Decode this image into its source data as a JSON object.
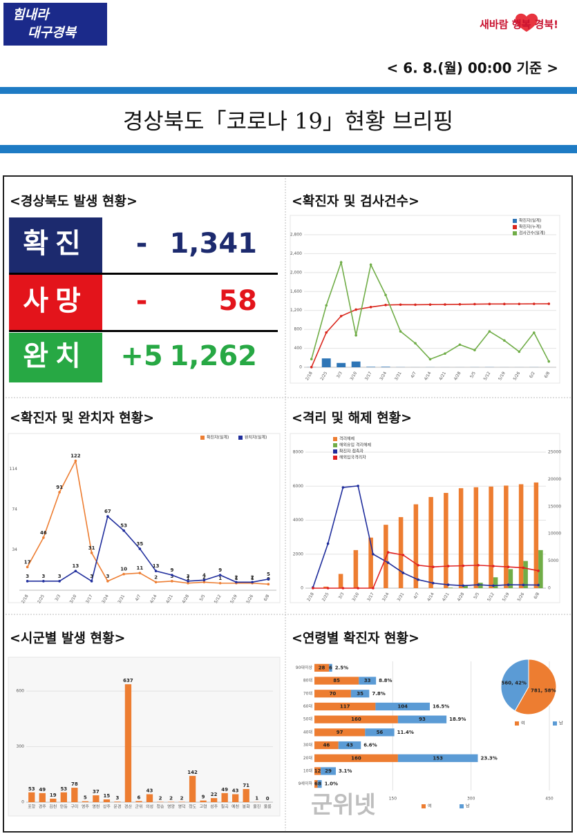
{
  "header": {
    "logo": [
      "힘내라",
      "대구경북"
    ],
    "slogan": "새바람 행복 경북!",
    "date": "< 6. 8.(월) 00:00 기준 >",
    "title": "경상북도「코로나 19」현황 브리핑"
  },
  "status": {
    "title": "<경상북도 발생 현황>",
    "rows": [
      {
        "label": "확진",
        "change": "-",
        "total": "1,341"
      },
      {
        "label": "사망",
        "change": "-",
        "total": "58"
      },
      {
        "label": "완치",
        "change": "+5",
        "total": "1,262"
      }
    ]
  },
  "watermark": "군위넷",
  "chart_data": [
    {
      "type": "line",
      "title": "<확진자 및 검사건수>",
      "categories": [
        "2/18",
        "2/25",
        "3/3",
        "3/10",
        "3/17",
        "3/24",
        "3/31",
        "4/7",
        "4/14",
        "4/21",
        "4/28",
        "5/5",
        "5/12",
        "5/19",
        "5/26",
        "6/2",
        "6/8"
      ],
      "ylim": [
        0,
        2800
      ],
      "yticks": [
        0,
        400,
        800,
        {
          "value": 1200,
          "label": "1,200"
        },
        {
          "value": 1600,
          "label": "1,600"
        },
        {
          "value": 2000,
          "label": "2,000"
        },
        {
          "value": 2400,
          "label": "2,400"
        },
        {
          "value": 2800,
          "label": "2,800"
        }
      ],
      "grid": true,
      "series": [
        {
          "name": "확진자(일계)",
          "type": "bar",
          "color": "#2e75b6",
          "values": [
            3,
            187,
            91,
            122,
            10,
            11,
            3,
            1,
            2,
            1,
            1,
            2,
            3,
            1,
            1,
            2,
            0
          ]
        },
        {
          "name": "확진자(누계)",
          "type": "line",
          "color": "#d9261c",
          "values": [
            3,
            734,
            1081,
            1218,
            1272,
            1315,
            1323,
            1321,
            1324,
            1326,
            1330,
            1334,
            1337,
            1337,
            1338,
            1340,
            1341
          ]
        },
        {
          "name": "검사건수(일계)",
          "type": "line",
          "color": "#70ad47",
          "values": [
            172,
            1307,
            2216,
            675,
            2167,
            1526,
            758,
            506,
            170,
            289,
            477,
            362,
            758,
            566,
            329,
            731,
            123
          ]
        }
      ]
    },
    {
      "type": "line",
      "title": "<확진자 및 완치자 현황>",
      "categories": [
        "2/18",
        "2/25",
        "3/3",
        "3/10",
        "3/17",
        "3/24",
        "3/31",
        "4/7",
        "4/14",
        "4/21",
        "4/28",
        "5/5",
        "5/12",
        "5/19",
        "5/26",
        "6/8"
      ],
      "ylim": [
        -6,
        134
      ],
      "yticks": [
        34,
        74,
        114
      ],
      "grid": false,
      "data_labels": true,
      "series": [
        {
          "name": "확진자(일계)",
          "type": "line",
          "color": "#ed7d31",
          "values": [
            17,
            46,
            91,
            122,
            31,
            3,
            10,
            11,
            2,
            3,
            1,
            2,
            1,
            1,
            1,
            0
          ]
        },
        {
          "name": "완치자(일계)",
          "type": "line",
          "color": "#1f2d9c",
          "values": [
            3,
            3,
            3,
            13,
            3,
            67,
            53,
            35,
            13,
            9,
            3,
            4,
            9,
            2,
            2,
            5
          ]
        }
      ]
    },
    {
      "type": "line",
      "title": "<격리 및 해제 현황>",
      "categories": [
        "2/18",
        "2/25",
        "3/3",
        "3/10",
        "3/17",
        "3/24",
        "3/31",
        "4/7",
        "4/14",
        "4/21",
        "4/28",
        "5/5",
        "5/12",
        "5/19",
        "5/26",
        "6/8"
      ],
      "ylim": [
        0,
        8000
      ],
      "yticks": [
        0,
        2000,
        4000,
        6000,
        8000
      ],
      "y2lim": [
        0,
        25000
      ],
      "y2ticks": [
        0,
        5000,
        10000,
        15000,
        20000,
        25000
      ],
      "grid": true,
      "series": [
        {
          "name": "격리해제",
          "type": "bar",
          "axis": "y2",
          "color": "#ed7d31",
          "values": [
            0,
            285,
            2620,
            7000,
            9297,
            11653,
            13061,
            15417,
            16759,
            17511,
            18377,
            18553,
            18677,
            18855,
            19109,
            19429
          ]
        },
        {
          "name": "해외유입 격리해제",
          "type": "bar",
          "axis": "y2",
          "color": "#70ad47",
          "values": [
            0,
            0,
            0,
            0,
            0,
            0,
            0,
            0,
            0,
            100,
            500,
            1000,
            2000,
            3500,
            5000,
            7000
          ]
        },
        {
          "name": "확진자 접촉자",
          "type": "line",
          "color": "#1f2d9c",
          "values": [
            43,
            2620,
            5928,
            6015,
            2000,
            1500,
            900,
            500,
            300,
            200,
            150,
            200,
            150,
            200,
            190,
            186
          ]
        },
        {
          "name": "해외입국격리자",
          "type": "line",
          "color": "#e02020",
          "values": [
            0,
            0,
            0,
            0,
            0,
            2109,
            1949,
            1350,
            1250,
            1300,
            1320,
            1350,
            1300,
            1250,
            1200,
            1022
          ]
        }
      ]
    },
    {
      "type": "bar",
      "title": "<시군별 발생 현황>",
      "categories": [
        "포항",
        "경주",
        "김천",
        "안동",
        "구미",
        "영주",
        "영천",
        "상주",
        "문경",
        "경산",
        "군위",
        "의성",
        "청송",
        "영양",
        "영덕",
        "청도",
        "고령",
        "성주",
        "칠곡",
        "예천",
        "봉화",
        "울진",
        "울릉"
      ],
      "values": [
        53,
        49,
        19,
        53,
        78,
        5,
        37,
        15,
        3,
        637,
        6,
        43,
        2,
        2,
        2,
        142,
        9,
        22,
        49,
        43,
        71,
        1,
        0
      ],
      "color": "#ed7d31",
      "ylim": [
        0,
        660
      ],
      "yticks": [
        0,
        300,
        600
      ],
      "grid": true,
      "data_labels": true
    },
    {
      "type": "hbar",
      "title": "<연령별 확진자 현황>",
      "stacked": true,
      "categories": [
        "90대이상",
        "80대",
        "70대",
        "60대",
        "50대",
        "40대",
        "30대",
        "20대",
        "10대",
        "9세이하"
      ],
      "xlim": [
        0,
        450
      ],
      "xticks": [
        150,
        300,
        450
      ],
      "grid": true,
      "data_labels": true,
      "series": [
        {
          "name": "여",
          "color": "#ed7d31",
          "values": [
            28,
            85,
            70,
            117,
            160,
            97,
            46,
            160,
            12,
            6
          ]
        },
        {
          "name": "남",
          "color": "#5b9bd5",
          "values": [
            6,
            33,
            35,
            104,
            93,
            56,
            43,
            153,
            29,
            8
          ]
        }
      ],
      "percent_labels": [
        "2.5%",
        "8.8%",
        "7.8%",
        "16.5%",
        "18.9%",
        "11.4%",
        "6.6%",
        "23.3%",
        "3.1%",
        "1.0%"
      ]
    },
    {
      "type": "pie",
      "labels": [
        "여",
        "남"
      ],
      "values": [
        781,
        560
      ],
      "value_labels": [
        "781, 58%",
        "560, 42%"
      ],
      "colors": [
        "#ed7d31",
        "#5b9bd5"
      ]
    }
  ]
}
